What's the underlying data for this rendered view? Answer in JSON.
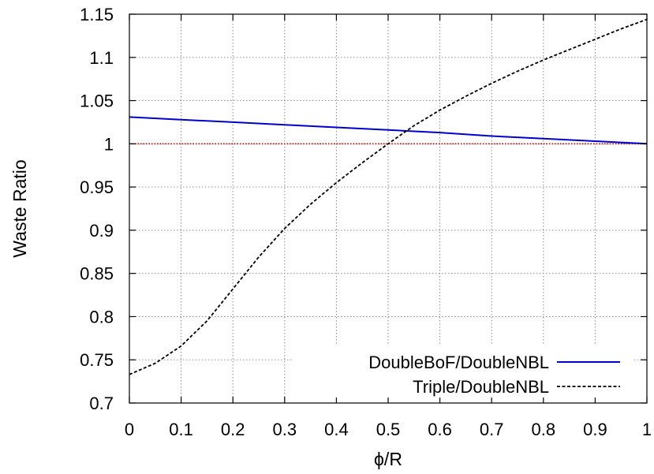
{
  "chart_data": {
    "type": "line",
    "xlabel": "ϕ/R",
    "ylabel": "Waste Ratio",
    "xlim": [
      0,
      1
    ],
    "ylim": [
      0.7,
      1.15
    ],
    "x_ticks": [
      0,
      0.1,
      0.2,
      0.3,
      0.4,
      0.5,
      0.6,
      0.7,
      0.8,
      0.9,
      1
    ],
    "x_tick_labels": [
      "0",
      "0.1",
      "0.2",
      "0.3",
      "0.4",
      "0.5",
      "0.6",
      "0.7",
      "0.8",
      "0.9",
      "1"
    ],
    "y_ticks": [
      0.7,
      0.75,
      0.8,
      0.85,
      0.9,
      0.95,
      1,
      1.05,
      1.1,
      1.15
    ],
    "y_tick_labels": [
      "0.7",
      "0.75",
      "0.8",
      "0.85",
      "0.9",
      "0.95",
      "1",
      "1.05",
      "1.1",
      "1.15"
    ],
    "grid": true,
    "legend_position": "bottom-right",
    "reference_line": {
      "y": 1,
      "color": "#e00000",
      "style": "dotted"
    },
    "series": [
      {
        "name": "DoubleBoF/DoubleNBL",
        "color": "#0000cc",
        "style": "solid",
        "x": [
          0,
          0.1,
          0.2,
          0.3,
          0.4,
          0.5,
          0.6,
          0.7,
          0.8,
          0.9,
          1
        ],
        "y": [
          1.031,
          1.028,
          1.025,
          1.022,
          1.019,
          1.016,
          1.013,
          1.009,
          1.006,
          1.003,
          1.0
        ]
      },
      {
        "name": "Triple/DoubleNBL",
        "color": "#000000",
        "style": "dashed",
        "x": [
          0,
          0.05,
          0.1,
          0.15,
          0.2,
          0.25,
          0.3,
          0.35,
          0.4,
          0.45,
          0.5,
          0.55,
          0.6,
          0.65,
          0.7,
          0.75,
          0.8,
          0.85,
          0.9,
          0.95,
          1
        ],
        "y": [
          0.733,
          0.746,
          0.766,
          0.795,
          0.832,
          0.869,
          0.902,
          0.93,
          0.955,
          0.978,
          1.0,
          1.021,
          1.039,
          1.055,
          1.07,
          1.084,
          1.097,
          1.109,
          1.121,
          1.133,
          1.144
        ]
      }
    ]
  }
}
